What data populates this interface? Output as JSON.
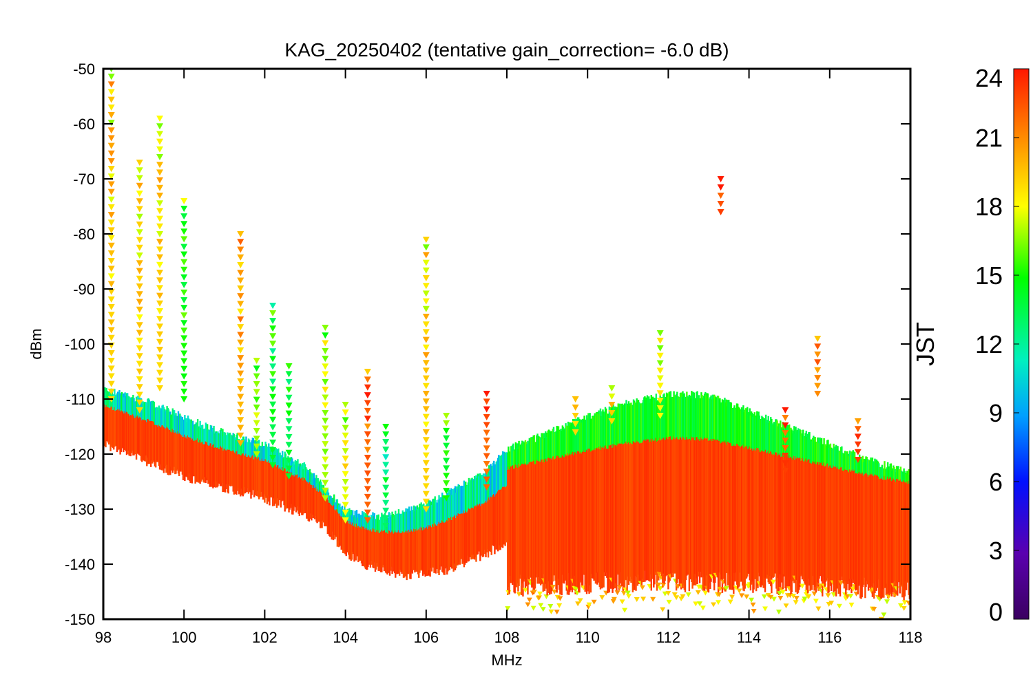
{
  "chart_data": {
    "type": "scatter",
    "title": "KAG_20250402 (tentative gain_correction= -6.0 dB)",
    "xlabel": "MHz",
    "ylabel": "dBm",
    "xlim": [
      98,
      118
    ],
    "ylim": [
      -150,
      -50
    ],
    "xticks": [
      98,
      100,
      102,
      104,
      106,
      108,
      110,
      112,
      114,
      116,
      118
    ],
    "yticks": [
      -50,
      -60,
      -70,
      -80,
      -90,
      -100,
      -110,
      -120,
      -130,
      -140,
      -150
    ],
    "colorbar": {
      "label": "JST",
      "range": [
        0,
        24
      ],
      "ticks": [
        0,
        3,
        6,
        9,
        12,
        15,
        18,
        21,
        24
      ],
      "colormap": "rainbow"
    },
    "marker": "downward-triangle",
    "noise_floor_day": [
      [
        98.0,
        -116
      ],
      [
        99.0,
        -119
      ],
      [
        100.0,
        -122
      ],
      [
        101.0,
        -124
      ],
      [
        102.0,
        -126
      ],
      [
        103.0,
        -129
      ],
      [
        103.5,
        -131
      ],
      [
        104.0,
        -136
      ],
      [
        104.5,
        -138
      ],
      [
        105.0,
        -139
      ],
      [
        105.5,
        -140
      ],
      [
        106.0,
        -139.5
      ],
      [
        106.5,
        -139
      ],
      [
        107.0,
        -137.5
      ],
      [
        107.5,
        -136
      ],
      [
        108.0,
        -134
      ],
      [
        110.0,
        -133.5
      ],
      [
        112.0,
        -133
      ],
      [
        114.0,
        -133.5
      ],
      [
        116.0,
        -134
      ],
      [
        118.0,
        -135
      ]
    ],
    "noise_floor_night": [
      [
        98.0,
        -109
      ],
      [
        99.0,
        -111
      ],
      [
        100.0,
        -114
      ],
      [
        101.0,
        -117
      ],
      [
        102.0,
        -119
      ],
      [
        103.0,
        -123
      ],
      [
        103.5,
        -127
      ],
      [
        104.0,
        -131
      ],
      [
        104.5,
        -132
      ],
      [
        105.0,
        -132
      ],
      [
        105.5,
        -131
      ],
      [
        106.0,
        -130
      ],
      [
        106.5,
        -128
      ],
      [
        107.0,
        -126
      ],
      [
        107.5,
        -124
      ],
      [
        108.0,
        -120
      ],
      [
        109.0,
        -117
      ],
      [
        110.0,
        -114
      ],
      [
        111.0,
        -111.5
      ],
      [
        112.0,
        -110
      ],
      [
        113.0,
        -110
      ],
      [
        114.0,
        -113
      ],
      [
        115.0,
        -116
      ],
      [
        116.0,
        -119
      ],
      [
        117.0,
        -122
      ],
      [
        118.0,
        -124
      ]
    ],
    "spikes": [
      {
        "f": 98.2,
        "ymin": -110,
        "ymax": -50,
        "jst": 19
      },
      {
        "f": 98.9,
        "ymin": -112,
        "ymax": -67,
        "jst": 19
      },
      {
        "f": 99.4,
        "ymin": -108,
        "ymax": -59,
        "jst": 19
      },
      {
        "f": 100.0,
        "ymin": -110,
        "ymax": -74,
        "jst": 15
      },
      {
        "f": 101.4,
        "ymin": -118,
        "ymax": -80,
        "jst": 20
      },
      {
        "f": 101.8,
        "ymin": -120,
        "ymax": -103,
        "jst": 17
      },
      {
        "f": 102.2,
        "ymin": -122,
        "ymax": -93,
        "jst": 14
      },
      {
        "f": 102.6,
        "ymin": -124,
        "ymax": -104,
        "jst": 14
      },
      {
        "f": 103.5,
        "ymin": -128,
        "ymax": -97,
        "jst": 17
      },
      {
        "f": 104.0,
        "ymin": -132,
        "ymax": -111,
        "jst": 18
      },
      {
        "f": 104.55,
        "ymin": -132,
        "ymax": -105,
        "jst": 22
      },
      {
        "f": 105.0,
        "ymin": -133,
        "ymax": -115,
        "jst": 13
      },
      {
        "f": 106.0,
        "ymin": -130,
        "ymax": -81,
        "jst": 19
      },
      {
        "f": 106.5,
        "ymin": -128,
        "ymax": -113,
        "jst": 15
      },
      {
        "f": 107.5,
        "ymin": -126,
        "ymax": -109,
        "jst": 22
      },
      {
        "f": 109.7,
        "ymin": -116,
        "ymax": -110,
        "jst": 19
      },
      {
        "f": 110.6,
        "ymin": -114,
        "ymax": -108,
        "jst": 19
      },
      {
        "f": 111.8,
        "ymin": -113,
        "ymax": -98,
        "jst": 18
      },
      {
        "f": 113.3,
        "ymin": -76,
        "ymax": -70,
        "jst": 23
      },
      {
        "f": 114.9,
        "ymin": -123,
        "ymax": -112,
        "jst": 23
      },
      {
        "f": 115.7,
        "ymin": -109,
        "ymax": -99,
        "jst": 21
      },
      {
        "f": 116.7,
        "ymin": -121,
        "ymax": -114,
        "jst": 23
      }
    ]
  }
}
